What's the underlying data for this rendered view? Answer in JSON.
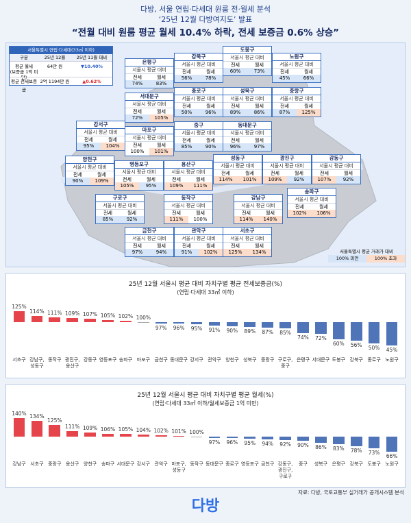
{
  "header": {
    "line1": "다방, 서울 연립·다세대 원룸 전·월세 분석",
    "line2": "‘25년 12월 다방여지도’ 발표",
    "headline": "“전월 대비 원룸 평균 월세 10.4% 하락, 전세 보증금 0.6% 상승”"
  },
  "summary": {
    "title": "서울특별시 연립·다세대(33㎡ 이하)",
    "header": [
      "구분",
      "25년 12월",
      "25년 11월 대비"
    ],
    "rows": [
      [
        "평균 월세\n(보증금 1억 미만)",
        "64만 원",
        "▼10.40%"
      ],
      [
        "평균 전세보증금",
        "2억 1194만 원",
        "▲0.62%"
      ]
    ]
  },
  "map": {
    "box_subtitle": "서울시 평균 대비",
    "col_jeonse": "전세",
    "col_wolse": "월세",
    "districts": [
      {
        "name": "은평구",
        "jeonse": "74%",
        "wolse": "83%"
      },
      {
        "name": "강북구",
        "jeonse": "56%",
        "wolse": "78%"
      },
      {
        "name": "도봉구",
        "jeonse": "60%",
        "wolse": "73%"
      },
      {
        "name": "노원구",
        "jeonse": "45%",
        "wolse": "66%"
      },
      {
        "name": "종로구",
        "jeonse": "50%",
        "wolse": "96%"
      },
      {
        "name": "성북구",
        "jeonse": "89%",
        "wolse": "86%"
      },
      {
        "name": "중랑구",
        "jeonse": "87%",
        "wolse": "125%"
      },
      {
        "name": "서대문구",
        "jeonse": "72%",
        "wolse": "105%"
      },
      {
        "name": "강서구",
        "jeonse": "95%",
        "wolse": "104%"
      },
      {
        "name": "마포구",
        "jeonse": "100%",
        "wolse": "101%"
      },
      {
        "name": "중구",
        "jeonse": "85%",
        "wolse": "90%"
      },
      {
        "name": "동대문구",
        "jeonse": "96%",
        "wolse": "97%"
      },
      {
        "name": "양천구",
        "jeonse": "90%",
        "wolse": "109%"
      },
      {
        "name": "영등포구",
        "jeonse": "105%",
        "wolse": "95%"
      },
      {
        "name": "용산구",
        "jeonse": "109%",
        "wolse": "111%"
      },
      {
        "name": "성동구",
        "jeonse": "114%",
        "wolse": "101%"
      },
      {
        "name": "광진구",
        "jeonse": "109%",
        "wolse": "92%"
      },
      {
        "name": "강동구",
        "jeonse": "107%",
        "wolse": "92%"
      },
      {
        "name": "송파구",
        "jeonse": "102%",
        "wolse": "106%"
      },
      {
        "name": "구로구",
        "jeonse": "85%",
        "wolse": "92%"
      },
      {
        "name": "동작구",
        "jeonse": "111%",
        "wolse": "100%"
      },
      {
        "name": "강남구",
        "jeonse": "114%",
        "wolse": "140%"
      },
      {
        "name": "금천구",
        "jeonse": "97%",
        "wolse": "94%"
      },
      {
        "name": "관악구",
        "jeonse": "91%",
        "wolse": "102%"
      },
      {
        "name": "서초구",
        "jeonse": "125%",
        "wolse": "134%"
      }
    ],
    "legend": {
      "title": "서울특별시 평균 거래가 대비",
      "below": {
        "label": "100% 미만",
        "color": "#d6e6f8"
      },
      "above": {
        "label": "100% 초과",
        "color": "#fcdccb"
      }
    }
  },
  "chart_data": [
    {
      "type": "bar",
      "title": "25년 12월 서울시 평균 대비 자치구별 평균 전세보증금(%)",
      "subtitle": "(연립·다세대 33㎡ 이하)",
      "categories": [
        "서초구",
        "강남구,\n성동구",
        "동작구",
        "광진구,\n용산구",
        "강동구",
        "영등포구",
        "송파구",
        "마포구",
        "금천구",
        "동대문구",
        "강서구",
        "관악구",
        "양천구",
        "성북구",
        "중랑구",
        "구로구,\n중구",
        "은평구",
        "서대문구",
        "도봉구",
        "강북구",
        "종로구",
        "노원구"
      ],
      "values": [
        125,
        114,
        111,
        109,
        107,
        105,
        102,
        100,
        97,
        96,
        95,
        91,
        90,
        89,
        87,
        85,
        74,
        72,
        60,
        56,
        50,
        45
      ],
      "value_labels": [
        "125%",
        "114%",
        "111%",
        "109%",
        "107%",
        "105%",
        "102%",
        "100%",
        "97%",
        "96%",
        "95%",
        "91%",
        "90%",
        "89%",
        "87%",
        "85%",
        "74%",
        "72%",
        "60%",
        "56%",
        "50%",
        "45%"
      ],
      "ylim": [
        40,
        130
      ],
      "baseline": 100,
      "color_above": "#e5454a",
      "color_below": "#4f74b8"
    },
    {
      "type": "bar",
      "title": "25년 12월 서울시 평균 대비 자치구별 평균 월세(%)",
      "subtitle": "(연립·다세대 33㎡ 이하/월세보증금 1억 미만)",
      "categories": [
        "강남구",
        "서초구",
        "중랑구",
        "용산구",
        "양천구",
        "송파구",
        "서대문구",
        "강서구",
        "관악구",
        "마포구,\n성동구",
        "동작구",
        "동대문구",
        "종로구",
        "영등포구",
        "금천구",
        "강동구,\n광진구,\n구로구",
        "중구",
        "성북구",
        "은평구",
        "강북구",
        "도봉구",
        "노원구"
      ],
      "values": [
        140,
        134,
        125,
        111,
        109,
        106,
        105,
        104,
        102,
        101,
        100,
        97,
        96,
        95,
        94,
        92,
        90,
        86,
        83,
        78,
        73,
        66
      ],
      "value_labels": [
        "140%",
        "134%",
        "125%",
        "111%",
        "109%",
        "106%",
        "105%",
        "104%",
        "102%",
        "101%",
        "100%",
        "97%",
        "96%",
        "95%",
        "94%",
        "92%",
        "90%",
        "86%",
        "83%",
        "78%",
        "73%",
        "66%"
      ],
      "ylim": [
        60,
        145
      ],
      "baseline": 100,
      "color_above": "#e5454a",
      "color_below": "#4f74b8"
    }
  ],
  "footer": {
    "logo": "다방",
    "source": "자료: 다방, 국토교통부 실거래가 공개시스템 분석"
  }
}
